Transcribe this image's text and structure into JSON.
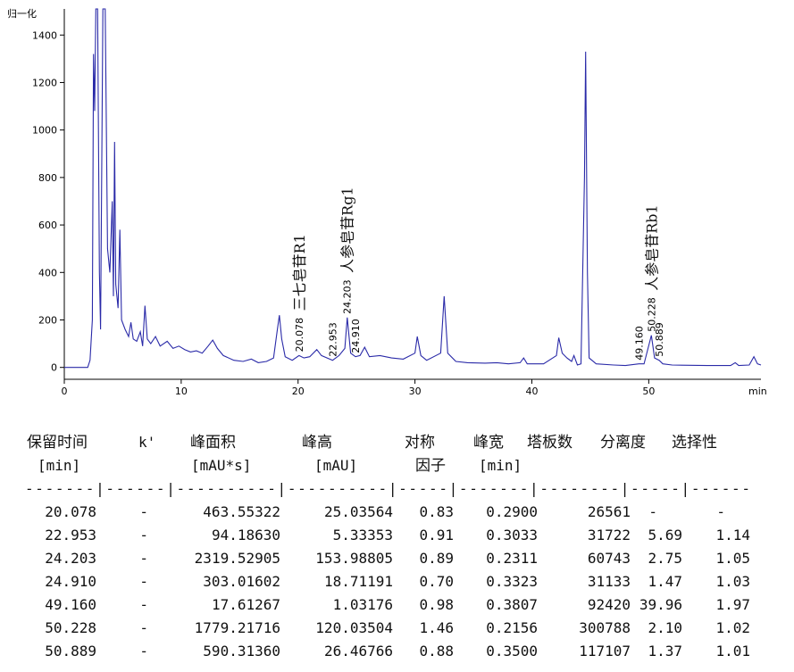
{
  "chart_data": {
    "type": "line",
    "y_label": "归一化",
    "x_label": "min",
    "color": "#2a2aa8",
    "xlim": [
      0,
      59.6
    ],
    "ylim": [
      -50,
      1510
    ],
    "xticks": [
      0,
      10,
      20,
      30,
      40,
      50
    ],
    "yticks": [
      0,
      200,
      400,
      600,
      800,
      1000,
      1200,
      1400
    ],
    "x": [
      0,
      2.0,
      2.2,
      2.4,
      2.5,
      2.6,
      2.7,
      2.85,
      3.0,
      3.1,
      3.3,
      3.5,
      3.7,
      3.9,
      4.1,
      4.2,
      4.3,
      4.4,
      4.6,
      4.75,
      4.9,
      5.2,
      5.5,
      5.7,
      5.9,
      6.2,
      6.5,
      6.7,
      6.9,
      7.1,
      7.4,
      7.8,
      8.2,
      8.8,
      9.3,
      9.8,
      10.3,
      10.8,
      11.3,
      11.8,
      12.3,
      12.7,
      13.1,
      13.6,
      14.5,
      15.3,
      16.0,
      16.6,
      17.3,
      17.9,
      18.2,
      18.4,
      18.6,
      18.9,
      19.5,
      20.078,
      20.5,
      21.0,
      21.6,
      22.0,
      22.953,
      23.5,
      24.0,
      24.203,
      24.5,
      24.91,
      25.3,
      25.7,
      26.1,
      27,
      28,
      29,
      30.0,
      30.2,
      30.5,
      31,
      32.2,
      32.5,
      32.8,
      33.5,
      34.5,
      36,
      37,
      38,
      39,
      39.3,
      39.6,
      41,
      42.1,
      42.3,
      42.6,
      43,
      43.4,
      43.6,
      43.9,
      44.2,
      44.5,
      44.6,
      44.75,
      44.9,
      45.5,
      47,
      48,
      49.16,
      49.6,
      50.228,
      50.5,
      50.889,
      51.2,
      52,
      55,
      57,
      57.4,
      57.7,
      58.6,
      59.0,
      59.3,
      59.6
    ],
    "values": [
      0,
      0,
      30,
      200,
      1320,
      1080,
      1510,
      1510,
      400,
      160,
      1510,
      1510,
      500,
      400,
      700,
      300,
      950,
      350,
      250,
      580,
      200,
      160,
      130,
      190,
      120,
      110,
      150,
      90,
      260,
      120,
      100,
      130,
      90,
      110,
      80,
      90,
      75,
      65,
      70,
      60,
      90,
      115,
      80,
      50,
      30,
      25,
      35,
      20,
      25,
      40,
      150,
      220,
      120,
      45,
      30,
      50,
      40,
      45,
      75,
      50,
      30,
      50,
      80,
      210,
      60,
      45,
      50,
      85,
      45,
      50,
      40,
      35,
      60,
      130,
      50,
      30,
      60,
      300,
      60,
      25,
      20,
      18,
      20,
      15,
      20,
      40,
      15,
      15,
      50,
      125,
      60,
      40,
      25,
      50,
      10,
      15,
      800,
      1330,
      400,
      40,
      15,
      10,
      8,
      15,
      15,
      135,
      40,
      30,
      15,
      10,
      8,
      8,
      20,
      8,
      10,
      45,
      15,
      10
    ],
    "annotations": [
      {
        "label": "20.078",
        "x": 20.078,
        "y": 50,
        "kind": "time"
      },
      {
        "label": "22.953",
        "x": 22.953,
        "y": 30,
        "kind": "time"
      },
      {
        "label": "24.203",
        "x": 24.203,
        "y": 210,
        "kind": "time"
      },
      {
        "label": "24.910",
        "x": 24.91,
        "y": 45,
        "kind": "time"
      },
      {
        "label": "49.160",
        "x": 49.16,
        "y": 15,
        "kind": "time"
      },
      {
        "label": "50.228",
        "x": 50.228,
        "y": 135,
        "kind": "time"
      },
      {
        "label": "50.889",
        "x": 50.889,
        "y": 30,
        "kind": "time"
      },
      {
        "label": "三七皂苷R1",
        "x": 20.078,
        "y": 50,
        "kind": "name"
      },
      {
        "label": "人参皂苷Rg1",
        "x": 24.203,
        "y": 210,
        "kind": "name"
      },
      {
        "label": "人参皂苷Rb1",
        "x": 50.228,
        "y": 135,
        "kind": "name"
      }
    ]
  },
  "table": {
    "header1": [
      "保留时间",
      "k'",
      "峰面积",
      "峰高",
      "对称",
      "峰宽",
      "塔板数",
      "分离度",
      "选择性"
    ],
    "header2": [
      "[min]",
      "[mAU*s]",
      "[mAU]",
      "因子",
      "[min]"
    ],
    "separator": "-------|------|----------|----------|-----|-------|--------|-----|------",
    "rows": [
      [
        "20.078",
        "-",
        "463.55322",
        "25.03564",
        "0.83",
        "0.2900",
        "26561",
        "-",
        "-"
      ],
      [
        "22.953",
        "-",
        "94.18630",
        "5.33353",
        "0.91",
        "0.3033",
        "31722",
        "5.69",
        "1.14"
      ],
      [
        "24.203",
        "-",
        "2319.52905",
        "153.98805",
        "0.89",
        "0.2311",
        "60743",
        "2.75",
        "1.05"
      ],
      [
        "24.910",
        "-",
        "303.01602",
        "18.71191",
        "0.70",
        "0.3323",
        "31133",
        "1.47",
        "1.03"
      ],
      [
        "49.160",
        "-",
        "17.61267",
        "1.03176",
        "0.98",
        "0.3807",
        "92420",
        "39.96",
        "1.97"
      ],
      [
        "50.228",
        "-",
        "1779.21716",
        "120.03504",
        "1.46",
        "0.2156",
        "300788",
        "2.10",
        "1.02"
      ],
      [
        "50.889",
        "-",
        "590.31360",
        "26.46766",
        "0.88",
        "0.3500",
        "117107",
        "1.37",
        "1.01"
      ]
    ]
  }
}
